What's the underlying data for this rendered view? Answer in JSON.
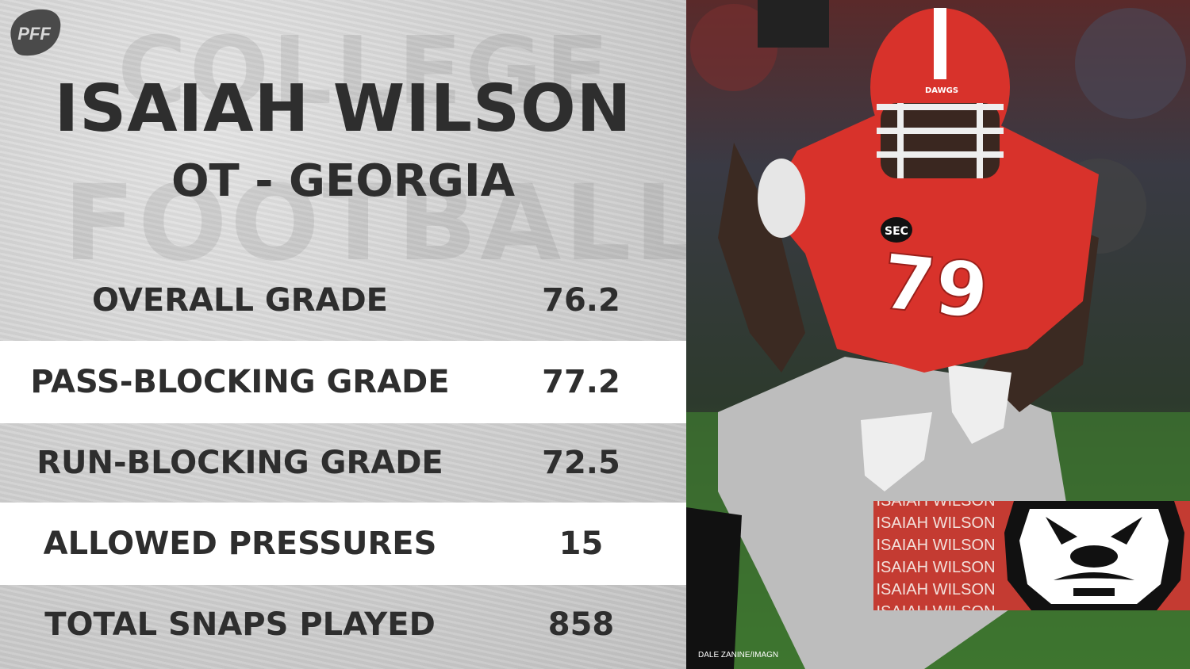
{
  "brand": {
    "logo_text": "PFF"
  },
  "background_text": {
    "line1": "COLLEGE",
    "line2": "FOOTBALL"
  },
  "player": {
    "name": "ISAIAH WILSON",
    "position_team": "OT - GEORGIA"
  },
  "stats": [
    {
      "label": "OVERALL GRADE",
      "value": "76.2"
    },
    {
      "label": "PASS-BLOCKING GRADE",
      "value": "77.2"
    },
    {
      "label": "RUN-BLOCKING GRADE",
      "value": "72.5"
    },
    {
      "label": "ALLOWED PRESSURES",
      "value": "15"
    },
    {
      "label": "TOTAL SNAPS PLAYED",
      "value": "858"
    }
  ],
  "photo": {
    "credit": "DALE ZANINE/IMAGN",
    "jersey_number": "79",
    "helmet_text": "DAWGS",
    "conference_patch": "SEC"
  },
  "name_tile": {
    "lines": [
      "ISAIAH WILSON",
      "ISAIAH WILSON",
      "ISAIAH WILSON",
      "ISAIAH WILSON",
      "ISAIAH WILSON",
      "ISAIAH WILSON"
    ]
  },
  "colors": {
    "panel_text": "#2e2e2e",
    "georgia_red": "#c43b32",
    "tile_text": "#f3e1dc"
  }
}
